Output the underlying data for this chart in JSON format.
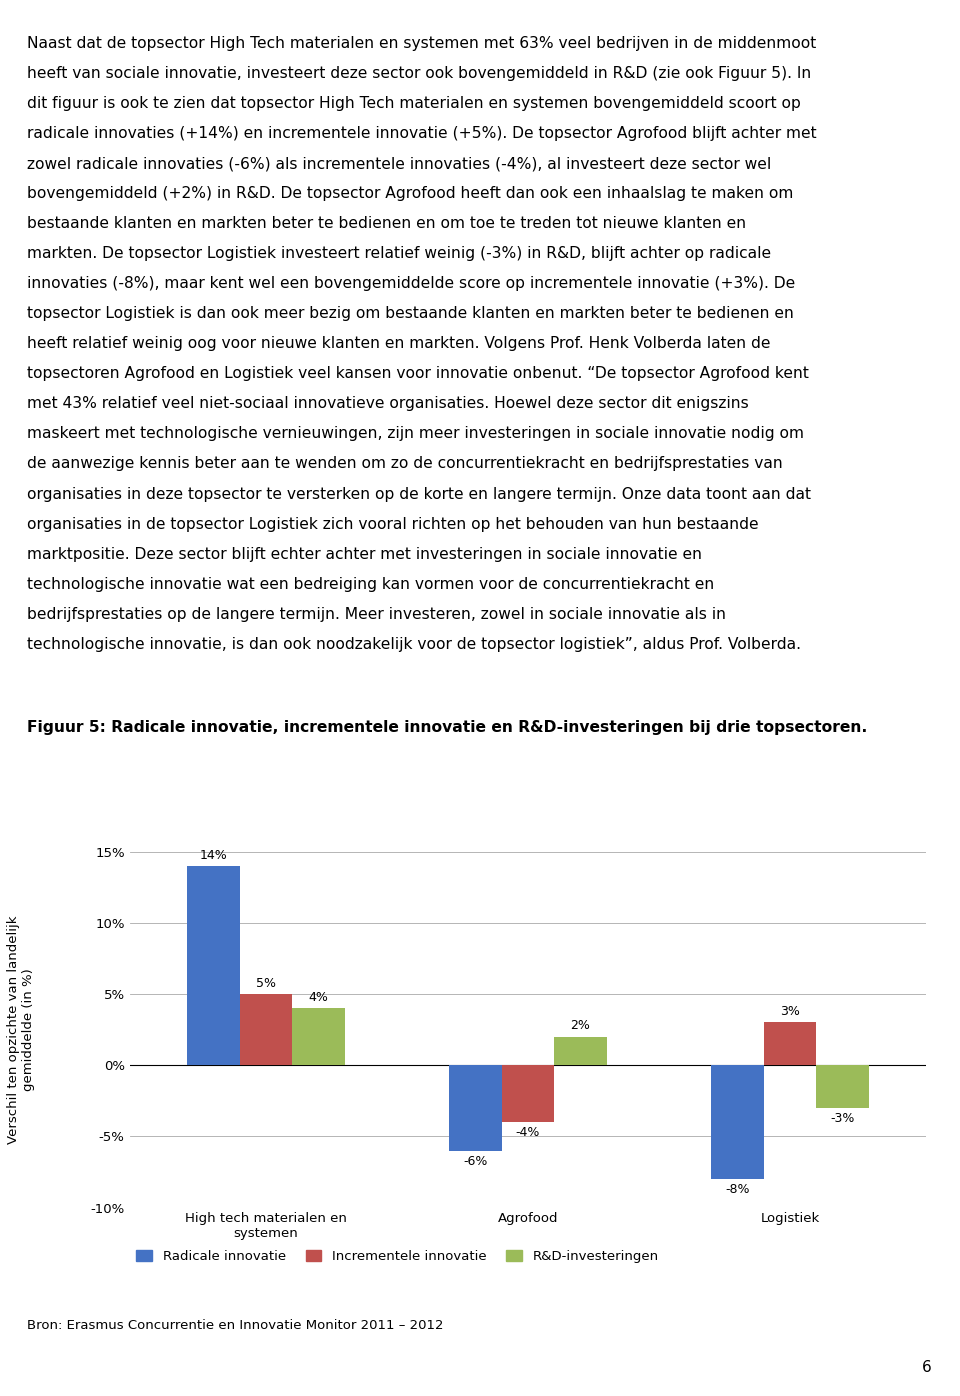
{
  "title": "Figuur 5: Radicale innovatie, incrementele innovatie en R&D-investeringen bij drie topsectoren.",
  "categories": [
    "High tech materialen en\nsystemen",
    "Agrofood",
    "Logistiek"
  ],
  "series": {
    "Radicale innovatie": [
      14,
      -6,
      -8
    ],
    "Incrementele innovatie": [
      5,
      -4,
      3
    ],
    "R&D-investeringen": [
      4,
      2,
      -3
    ]
  },
  "bar_colors": {
    "Radicale innovatie": "#4472C4",
    "Incrementele innovatie": "#C0504D",
    "R&D-investeringen": "#9BBB59"
  },
  "ylabel": "Verschil ten opzichte van landelijk\ngemiddelde (in %)",
  "ylim": [
    -10,
    15
  ],
  "yticks": [
    -10,
    -5,
    0,
    5,
    10,
    15
  ],
  "ytick_labels": [
    "-10%",
    "-5%",
    "0%",
    "5%",
    "10%",
    "15%"
  ],
  "source": "Bron: Erasmus Concurrentie en Innovatie Monitor 2011 – 2012",
  "page_number": "6",
  "body_lines": [
    "Naast dat de topsector High Tech materialen en systemen met 63% veel bedrijven in de middenmoot",
    "heeft van sociale innovatie, investeert deze sector ook bovengemiddeld in R&D (zie ook Figuur 5). In",
    "dit figuur is ook te zien dat topsector High Tech materialen en systemen bovengemiddeld scoort op",
    "radicale innovaties (+14%) en incrementele innovatie (+5%). De topsector Agrofood blijft achter met",
    "zowel radicale innovaties (-6%) als incrementele innovaties (-4%), al investeert deze sector wel",
    "bovengemiddeld (+2%) in R&D. De topsector Agrofood heeft dan ook een inhaalslag te maken om",
    "bestaande klanten en markten beter te bedienen en om toe te treden tot nieuwe klanten en",
    "markten. De topsector Logistiek investeert relatief weinig (-3%) in R&D, blijft achter op radicale",
    "innovaties (-8%), maar kent wel een bovengemiddelde score op incrementele innovatie (+3%). De",
    "topsector Logistiek is dan ook meer bezig om bestaande klanten en markten beter te bedienen en",
    "heeft relatief weinig oog voor nieuwe klanten en markten. Volgens Prof. Henk Volberda laten de",
    "topsectoren Agrofood en Logistiek veel kansen voor innovatie onbenut. “De topsector Agrofood kent",
    "met 43% relatief veel niet-sociaal innovatieve organisaties. Hoewel deze sector dit enigszins",
    "maskeert met technologische vernieuwingen, zijn meer investeringen in sociale innovatie nodig om",
    "de aanwezige kennis beter aan te wenden om zo de concurrentiekracht en bedrijfsprestaties van",
    "organisaties in deze topsector te versterken op de korte en langere termijn. Onze data toont aan dat",
    "organisaties in de topsector Logistiek zich vooral richten op het behouden van hun bestaande",
    "marktpositie. Deze sector blijft echter achter met investeringen in sociale innovatie en",
    "technologische innovatie wat een bedreiging kan vormen voor de concurrentiekracht en",
    "bedrijfsprestaties op de langere termijn. Meer investeren, zowel in sociale innovatie als in",
    "technologische innovatie, is dan ook noodzakelijk voor de topsector logistiek”, aldus Prof. Volberda."
  ]
}
